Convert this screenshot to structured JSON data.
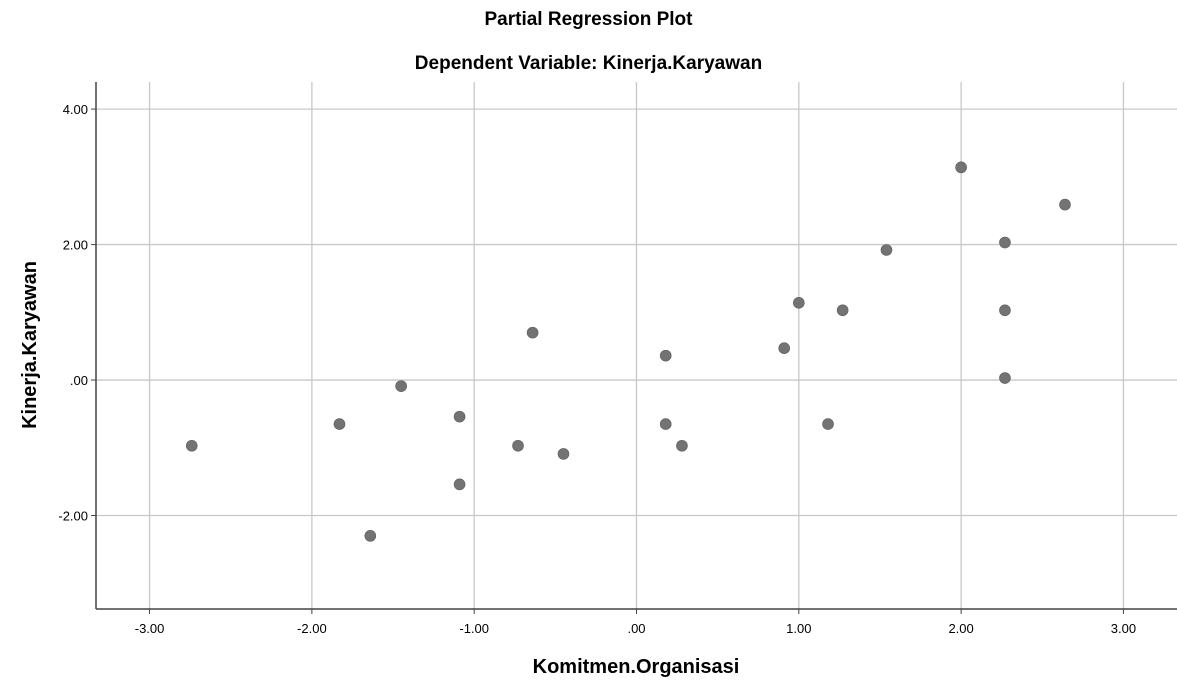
{
  "chart_data": {
    "type": "scatter",
    "title": "Partial Regression Plot",
    "subtitle": "Dependent Variable: Kinerja.Karyawan",
    "xlabel": "Komitmen.Organisasi",
    "ylabel": "Kinerja.Karyawan",
    "xlim": [
      -3.33,
      3.33
    ],
    "ylim": [
      -3.38,
      4.4
    ],
    "grid": true,
    "x_ticks": [
      -3,
      -2,
      -1,
      0,
      1,
      2,
      3
    ],
    "x_tick_labels": [
      "-3.00",
      "-2.00",
      "-1.00",
      ".00",
      "1.00",
      "2.00",
      "3.00"
    ],
    "y_ticks": [
      -2,
      0,
      2,
      4
    ],
    "y_tick_labels": [
      "-2.00",
      ".00",
      "2.00",
      "4.00"
    ],
    "point_color": "#737373",
    "grid_color": "#c8c8c8",
    "points": [
      {
        "x": -2.74,
        "y": -0.97
      },
      {
        "x": -1.83,
        "y": -0.65
      },
      {
        "x": -1.64,
        "y": -2.3
      },
      {
        "x": -1.45,
        "y": -0.09
      },
      {
        "x": -1.09,
        "y": -0.54
      },
      {
        "x": -1.09,
        "y": -1.54
      },
      {
        "x": -0.73,
        "y": -0.97
      },
      {
        "x": -0.64,
        "y": 0.7
      },
      {
        "x": -0.45,
        "y": -1.09
      },
      {
        "x": 0.18,
        "y": 0.36
      },
      {
        "x": 0.18,
        "y": -0.65
      },
      {
        "x": 0.28,
        "y": -0.97
      },
      {
        "x": 0.91,
        "y": 0.47
      },
      {
        "x": 1.0,
        "y": 1.14
      },
      {
        "x": 1.18,
        "y": -0.65
      },
      {
        "x": 1.27,
        "y": 1.03
      },
      {
        "x": 1.54,
        "y": 1.92
      },
      {
        "x": 2.0,
        "y": 3.14
      },
      {
        "x": 2.27,
        "y": 2.03
      },
      {
        "x": 2.27,
        "y": 1.03
      },
      {
        "x": 2.27,
        "y": 0.03
      },
      {
        "x": 2.64,
        "y": 2.59
      }
    ]
  }
}
